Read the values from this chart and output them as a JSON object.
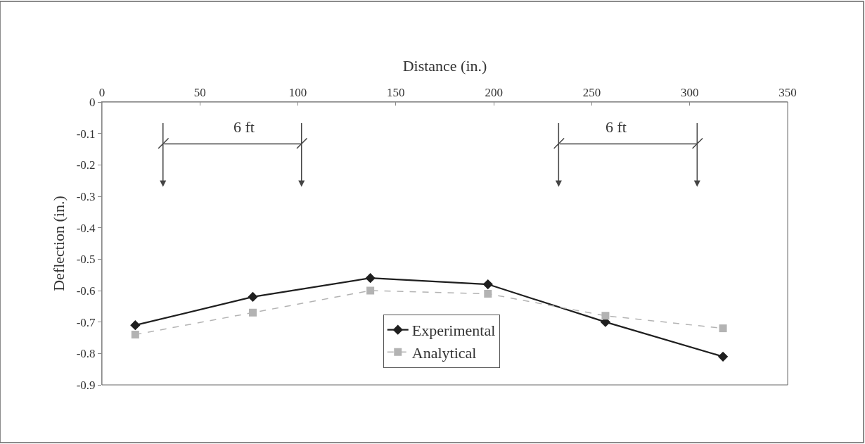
{
  "chart_data": {
    "type": "line",
    "xlabel": "Distance (in.)",
    "ylabel": "Deflection (in.)",
    "x": [
      17,
      77,
      137,
      197,
      257,
      317
    ],
    "series": [
      {
        "name": "Experimental",
        "color": "#1f1f1f",
        "marker": "diamond",
        "line_style": "solid",
        "values": [
          -0.71,
          -0.62,
          -0.56,
          -0.58,
          -0.7,
          -0.81
        ]
      },
      {
        "name": "Analytical",
        "color": "#b3b3b3",
        "marker": "square",
        "line_style": "dashed",
        "values": [
          -0.74,
          -0.67,
          -0.6,
          -0.61,
          -0.68,
          -0.72
        ]
      }
    ],
    "xlim": [
      0,
      350
    ],
    "xticks": [
      0,
      50,
      100,
      150,
      200,
      250,
      300,
      350
    ],
    "ylim": [
      -0.9,
      0
    ],
    "yticks": [
      0,
      -0.1,
      -0.2,
      -0.3,
      -0.4,
      -0.5,
      -0.6,
      -0.7,
      -0.8,
      -0.9
    ],
    "grid": false,
    "legend": "bottom",
    "annotations": [
      "6 ft",
      "6 ft"
    ]
  }
}
